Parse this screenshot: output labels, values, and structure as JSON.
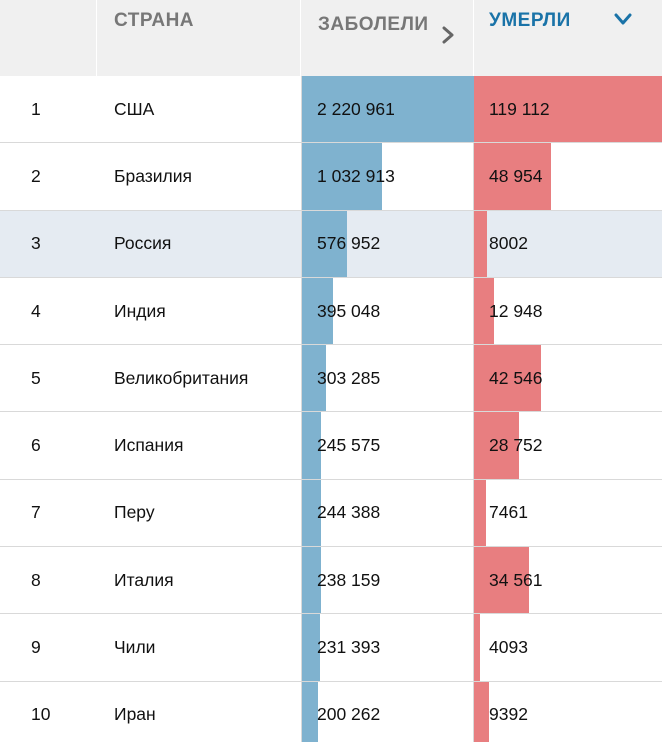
{
  "header": {
    "country": "СТРАНА",
    "cases": "ЗАБОЛЕЛИ",
    "deaths": "УМЕРЛИ"
  },
  "colors": {
    "cases_bar": "#7fb2cf",
    "deaths_bar": "#e87e80",
    "active_header": "#1a73a8",
    "header_bg": "#f0f0f0",
    "highlight_row": "#e5ebf2"
  },
  "icons": {
    "cases_sort": "chevron-right-icon",
    "deaths_sort": "chevron-down-icon"
  },
  "rows": [
    {
      "rank": "1",
      "country": "США",
      "cases": "2 220 961",
      "deaths": "119 112",
      "cases_value": 2220961,
      "deaths_value": 119112
    },
    {
      "rank": "2",
      "country": "Бразилия",
      "cases": "1 032 913",
      "deaths": "48 954",
      "cases_value": 1032913,
      "deaths_value": 48954
    },
    {
      "rank": "3",
      "country": "Россия",
      "cases": "576 952",
      "deaths": "8002",
      "cases_value": 576952,
      "deaths_value": 8002
    },
    {
      "rank": "4",
      "country": "Индия",
      "cases": "395 048",
      "deaths": "12 948",
      "cases_value": 395048,
      "deaths_value": 12948
    },
    {
      "rank": "5",
      "country": "Великобритания",
      "cases": "303 285",
      "deaths": "42 546",
      "cases_value": 303285,
      "deaths_value": 42546
    },
    {
      "rank": "6",
      "country": "Испания",
      "cases": "245 575",
      "deaths": "28 752",
      "cases_value": 245575,
      "deaths_value": 28752
    },
    {
      "rank": "7",
      "country": "Перу",
      "cases": "244 388",
      "deaths": "7461",
      "cases_value": 244388,
      "deaths_value": 7461
    },
    {
      "rank": "8",
      "country": "Италия",
      "cases": "238 159",
      "deaths": "34 561",
      "cases_value": 238159,
      "deaths_value": 34561
    },
    {
      "rank": "9",
      "country": "Чили",
      "cases": "231 393",
      "deaths": "4093",
      "cases_value": 231393,
      "deaths_value": 4093
    },
    {
      "rank": "10",
      "country": "Иран",
      "cases": "200 262",
      "deaths": "9392",
      "cases_value": 200262,
      "deaths_value": 9392
    }
  ],
  "highlighted_rank": "3"
}
